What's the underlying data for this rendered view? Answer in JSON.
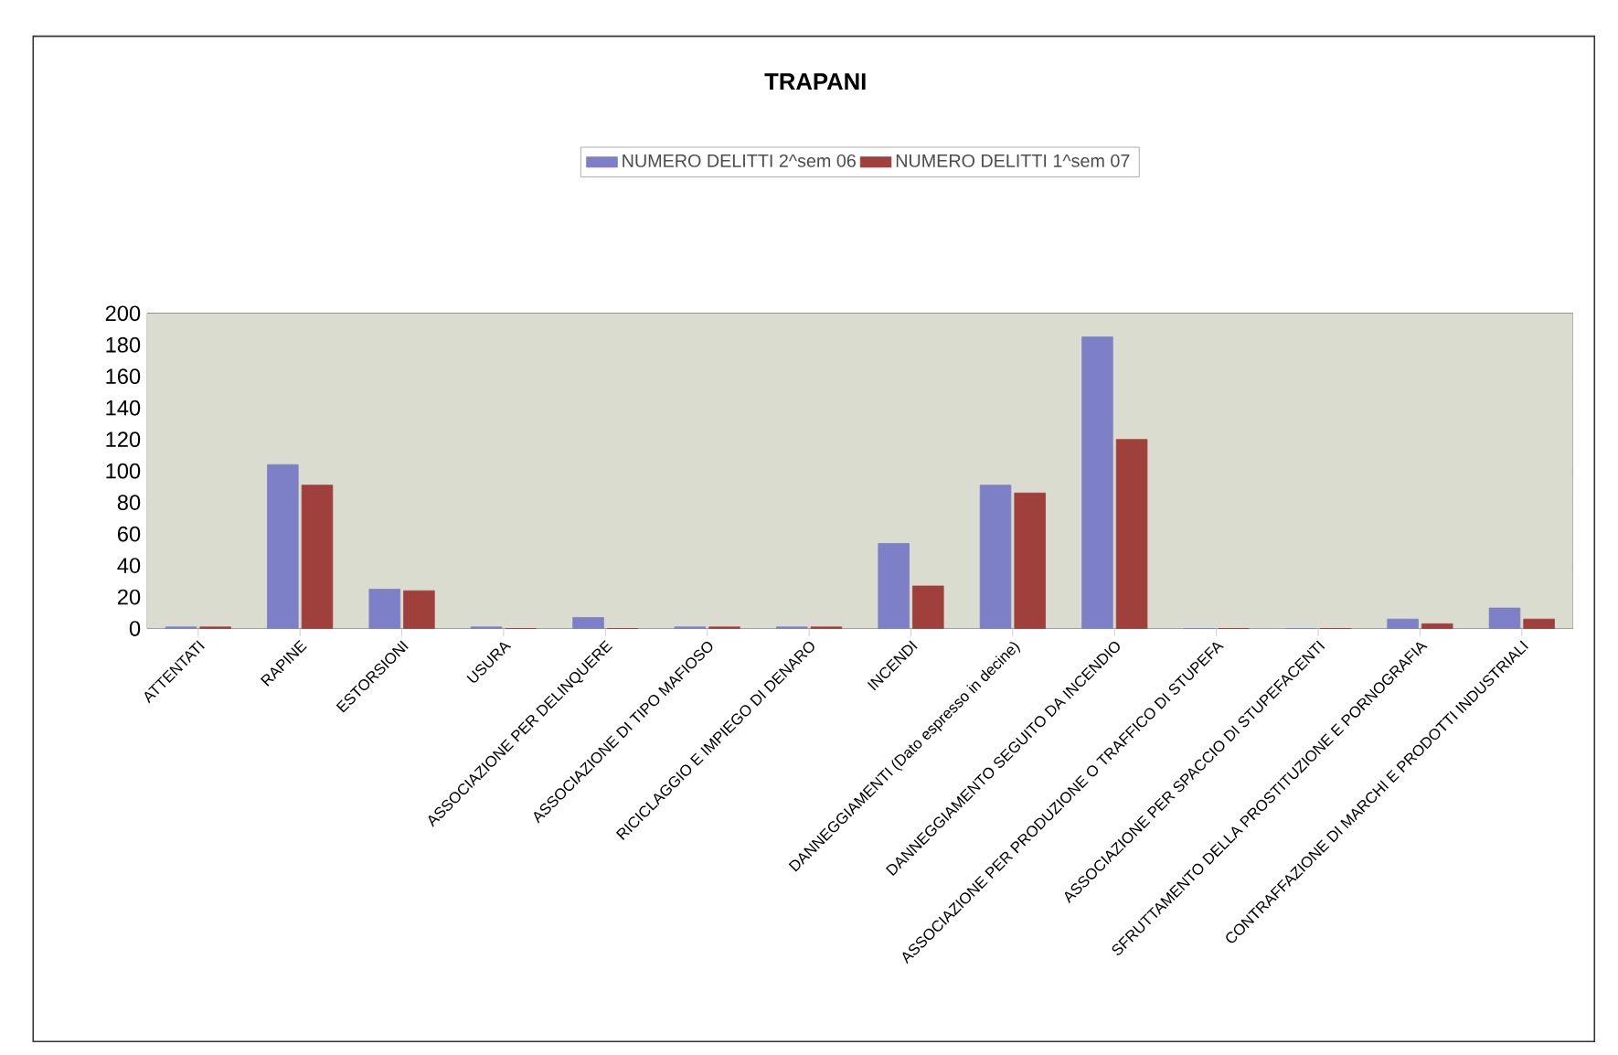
{
  "chart_data": {
    "type": "bar",
    "title": "TRAPANI",
    "categories": [
      "ATTENTATI",
      "RAPINE",
      "ESTORSIONI",
      "USURA",
      "ASSOCIAZIONE PER DELINQUERE",
      "ASSOCIAZIONE DI TIPO MAFIOSO",
      "RICICLAGGIO E IMPIEGO DI DENARO",
      "INCENDI",
      "DANNEGGIAMENTI (Dato espresso in decine)",
      "DANNEGGIAMENTO SEGUITO DA INCENDIO",
      "ASSOCIAZIONE PER PRODUZIONE O TRAFFICO DI STUPEFA",
      "ASSOCIAZIONE PER SPACCIO DI STUPEFACENTI",
      "SFRUTTAMENTO DELLA PROSTITUZIONE E PORNOGRAFIA",
      "CONTRAFFAZIONE DI MARCHI E PRODOTTI INDUSTRIALI"
    ],
    "series": [
      {
        "name": "NUMERO DELITTI 2^sem 06",
        "color": "#7d80c6",
        "values": [
          1,
          104,
          25,
          1,
          7,
          1,
          1,
          54,
          91,
          185,
          0,
          0,
          6,
          13
        ]
      },
      {
        "name": "NUMERO DELITTI 1^sem 07",
        "color": "#a0403c",
        "values": [
          1,
          91,
          24,
          0,
          0,
          1,
          1,
          27,
          86,
          120,
          0,
          0,
          3,
          6
        ]
      }
    ],
    "ylim": [
      0,
      200
    ],
    "yticks": [
      0,
      20,
      40,
      60,
      80,
      100,
      120,
      140,
      160,
      180,
      200
    ],
    "grid": "y",
    "legend": "top"
  }
}
